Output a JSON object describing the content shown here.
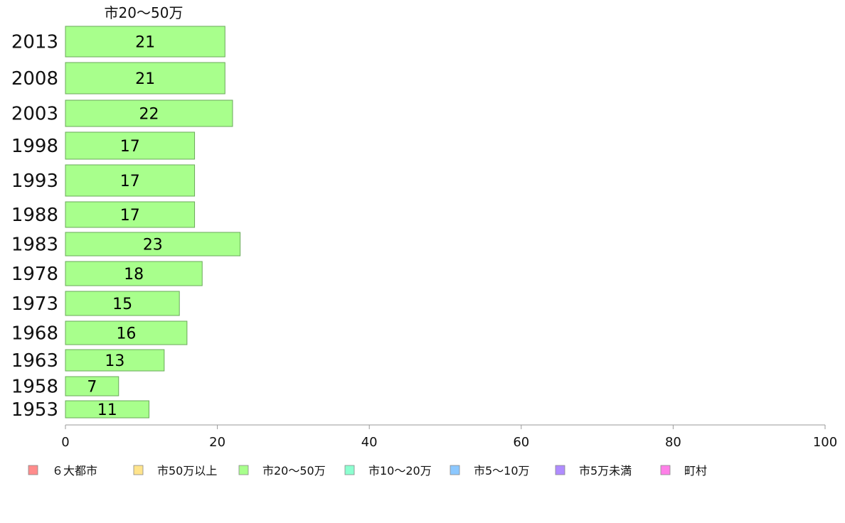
{
  "chart_data": {
    "type": "bar",
    "orientation": "horizontal",
    "categories": [
      "2013",
      "2008",
      "2003",
      "1998",
      "1993",
      "1988",
      "1983",
      "1978",
      "1973",
      "1968",
      "1963",
      "1958",
      "1953"
    ],
    "series": [
      {
        "name": "市20～50万",
        "values": [
          21,
          21,
          22,
          17,
          17,
          17,
          23,
          18,
          15,
          16,
          13,
          7,
          11
        ],
        "value_labels": [
          "21",
          "21",
          "22",
          "17",
          "17",
          "17",
          "23",
          "18",
          "15",
          "16",
          "13",
          "7",
          "11"
        ]
      }
    ],
    "xlim": [
      0,
      100
    ],
    "xticks": [
      0,
      20,
      40,
      60,
      80,
      100
    ],
    "grid": false,
    "legend_position": "bottom",
    "legend": [
      {
        "label": "６大都市",
        "color": "#ff8c8c"
      },
      {
        "label": "市50万以上",
        "color": "#ffe48c"
      },
      {
        "label": "市20～50万",
        "color": "#a8ff8c"
      },
      {
        "label": "市10～20万",
        "color": "#8cffd0"
      },
      {
        "label": "市5～10万",
        "color": "#8cc8ff"
      },
      {
        "label": "市5万未満",
        "color": "#b08cff"
      },
      {
        "label": "町村",
        "color": "#ff80e8"
      }
    ],
    "bar_color": "#a8ff8c",
    "bar_stroke": "#6aa85a"
  }
}
